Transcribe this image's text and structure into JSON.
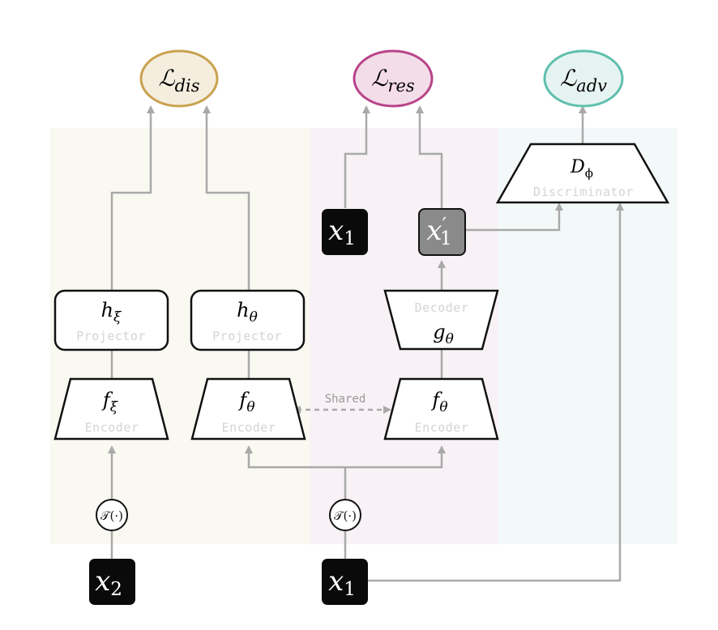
{
  "losses": {
    "dis": {
      "main": "ℒ",
      "sub": "dis",
      "fill": "#f5eedf",
      "stroke": "#c9a24e"
    },
    "res": {
      "main": "ℒ",
      "sub": "res",
      "fill": "#f3dde8",
      "stroke": "#b8448a"
    },
    "adv": {
      "main": "ℒ",
      "sub": "adv",
      "fill": "#e6f4f1",
      "stroke": "#5fbfae"
    }
  },
  "regions": {
    "left_fill": "#f9f8f1",
    "middle_fill": "#f8f1f5",
    "right_fill": "#f3f9f9"
  },
  "discriminator": {
    "main": "D",
    "sub": "ϕ",
    "label": "Discriminator"
  },
  "projector_xi": {
    "main": "h",
    "sub": "ξ",
    "label": "Projector"
  },
  "projector_theta": {
    "main": "h",
    "sub": "θ",
    "label": "Projector"
  },
  "encoder_xi": {
    "main": "f",
    "sub": "ξ",
    "label": "Encoder"
  },
  "encoder_theta_left": {
    "main": "f",
    "sub": "θ",
    "label": "Encoder"
  },
  "encoder_theta_right": {
    "main": "f",
    "sub": "θ",
    "label": "Encoder"
  },
  "decoder": {
    "main": "g",
    "sub": "θ",
    "label": "Decoder"
  },
  "shared_label": "Shared",
  "x1_top": {
    "main": "x",
    "sub": "1"
  },
  "x1_recon": {
    "main": "x",
    "prime": "′",
    "sub": "1"
  },
  "x1_bottom": {
    "main": "x",
    "sub": "1"
  },
  "x2_bottom": {
    "main": "x",
    "sub": "2"
  },
  "transform_left": "𝒯(·)",
  "transform_right": "𝒯(·)"
}
